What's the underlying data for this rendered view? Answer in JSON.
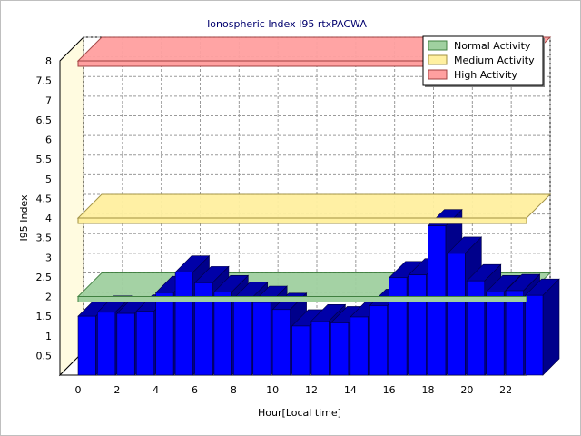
{
  "chart_data": {
    "type": "bar",
    "title": "Ionospheric Index I95 rtxPACWA",
    "xlabel": "Hour[Local time]",
    "ylabel": "I95 Index",
    "x_tick_labels": [
      "0",
      "2",
      "4",
      "6",
      "8",
      "10",
      "12",
      "14",
      "16",
      "18",
      "20",
      "22"
    ],
    "y_tick_labels": [
      "0.5",
      "1",
      "1.5",
      "2",
      "2.5",
      "3",
      "3.5",
      "4",
      "4.5",
      "5",
      "5.5",
      "6",
      "6.5",
      "7",
      "7.5",
      "8"
    ],
    "ylim": [
      0,
      8
    ],
    "grid": true,
    "legend_position": "top-right",
    "bar_color": "#0000ff",
    "categories": [
      0,
      1,
      2,
      3,
      4,
      5,
      6,
      7,
      8,
      9,
      10,
      11,
      12,
      13,
      14,
      15,
      16,
      17,
      18,
      19,
      20,
      21,
      22,
      23
    ],
    "values": [
      1.5,
      1.6,
      1.57,
      1.63,
      2.1,
      2.62,
      2.35,
      2.12,
      1.95,
      1.85,
      1.67,
      1.25,
      1.38,
      1.33,
      1.48,
      1.77,
      2.48,
      2.55,
      3.8,
      3.1,
      2.4,
      2.12,
      2.15,
      2.03
    ],
    "bands": [
      {
        "name": "Normal Activity",
        "level": 2,
        "color": "#a0d0a0",
        "edge": "#408040"
      },
      {
        "name": "Medium Activity",
        "level": 4,
        "color": "#fff0a0",
        "edge": "#a09040"
      },
      {
        "name": "High Activity",
        "level": 8,
        "color": "#ffa0a0",
        "edge": "#a04040"
      }
    ]
  }
}
